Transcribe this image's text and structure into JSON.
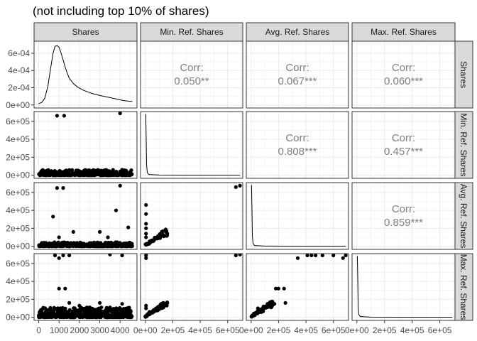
{
  "chart_data": {
    "type": "scatter-matrix",
    "title": "(not including top 10% of shares)",
    "variables": [
      "Shares",
      "Min. Ref. Shares",
      "Avg. Ref. Shares",
      "Max. Ref. Shares"
    ],
    "x_ticks": [
      {
        "values": [
          0,
          1000,
          2000,
          3000,
          4000
        ],
        "labels": [
          "0",
          "1000",
          "2000",
          "3000",
          "4000"
        ]
      },
      {
        "values": [
          0,
          200000,
          400000,
          600000
        ],
        "labels": [
          "0e+00",
          "2e+05",
          "4e+05",
          "6e+05"
        ]
      },
      {
        "values": [
          0,
          200000,
          400000,
          600000
        ],
        "labels": [
          "0e+00",
          "2e+05",
          "4e+05",
          "6e+05"
        ]
      },
      {
        "values": [
          0,
          200000,
          400000,
          600000
        ],
        "labels": [
          "0e+00",
          "2e+05",
          "4e+05",
          "6e+05"
        ]
      }
    ],
    "x_ranges": [
      [
        -230,
        4830
      ],
      [
        -35000,
        710000
      ],
      [
        -35000,
        710000
      ],
      [
        -35000,
        710000
      ]
    ],
    "y_ticks": [
      {
        "values": [
          0,
          0.0002,
          0.0004,
          0.0006
        ],
        "labels": [
          "0e+00",
          "2e-04",
          "4e-04",
          "6e-04"
        ]
      },
      {
        "values": [
          0,
          200000,
          400000,
          600000
        ],
        "labels": [
          "0e+00",
          "2e+05",
          "4e+05",
          "6e+05"
        ]
      },
      {
        "values": [
          0,
          200000,
          400000,
          600000
        ],
        "labels": [
          "0e+00",
          "2e+05",
          "4e+05",
          "6e+05"
        ]
      },
      {
        "values": [
          0,
          200000,
          400000,
          600000
        ],
        "labels": [
          "0e+00",
          "2e+05",
          "4e+05",
          "6e+05"
        ]
      }
    ],
    "y_ranges": [
      [
        -3.5e-05,
        0.00074
      ],
      [
        -35000,
        710000
      ],
      [
        -35000,
        710000
      ],
      [
        -35000,
        710000
      ]
    ],
    "correlations": [
      {
        "row": 0,
        "col": 1,
        "label": "Corr:",
        "value": "0.050**"
      },
      {
        "row": 0,
        "col": 2,
        "label": "Corr:",
        "value": "0.067***"
      },
      {
        "row": 0,
        "col": 3,
        "label": "Corr:",
        "value": "0.060***"
      },
      {
        "row": 1,
        "col": 2,
        "label": "Corr:",
        "value": "0.808***"
      },
      {
        "row": 1,
        "col": 3,
        "label": "Corr:",
        "value": "0.457***"
      },
      {
        "row": 2,
        "col": 3,
        "label": "Corr:",
        "value": "0.859***"
      }
    ],
    "density_shares": [
      [
        0,
        1.5e-05
      ],
      [
        150,
        3e-05
      ],
      [
        300,
        8e-05
      ],
      [
        450,
        0.00022
      ],
      [
        600,
        0.00045
      ],
      [
        700,
        0.0006
      ],
      [
        800,
        0.00068
      ],
      [
        900,
        0.00069
      ],
      [
        1000,
        0.00067
      ],
      [
        1100,
        0.0006
      ],
      [
        1200,
        0.00052
      ],
      [
        1300,
        0.00044
      ],
      [
        1400,
        0.00037
      ],
      [
        1500,
        0.00031
      ],
      [
        1700,
        0.00025
      ],
      [
        1900,
        0.00021
      ],
      [
        2200,
        0.00017
      ],
      [
        2600,
        0.000135
      ],
      [
        3000,
        0.00011
      ],
      [
        3400,
        9e-05
      ],
      [
        3800,
        7e-05
      ],
      [
        4200,
        5e-05
      ],
      [
        4600,
        4e-05
      ]
    ],
    "density_refs": [
      [
        0,
        0.000685
      ],
      [
        3000,
        0.000685
      ],
      [
        6000,
        0.00045
      ],
      [
        9000,
        0.00012
      ],
      [
        14000,
        3e-05
      ],
      [
        25000,
        8e-06
      ],
      [
        100000,
        2e-06
      ],
      [
        300000,
        1e-06
      ],
      [
        690000,
        1e-06
      ]
    ],
    "scatter_outliers": {
      "1_0": [
        [
          900,
          663000
        ],
        [
          1250,
          663000
        ],
        [
          4000,
          690000
        ]
      ],
      "2_0": [
        [
          900,
          650000
        ],
        [
          1200,
          650000
        ],
        [
          4000,
          675000
        ],
        [
          700,
          330000
        ],
        [
          1000,
          100000
        ],
        [
          1700,
          160000
        ],
        [
          3800,
          400000
        ],
        [
          3000,
          160000
        ],
        [
          3400,
          100000
        ],
        [
          4400,
          210000
        ]
      ],
      "3_0": [
        [
          800,
          690000
        ],
        [
          1000,
          660000
        ],
        [
          1200,
          690000
        ],
        [
          1500,
          690000
        ],
        [
          3500,
          700000
        ],
        [
          4100,
          690000
        ],
        [
          1000,
          320000
        ],
        [
          1300,
          320000
        ],
        [
          1500,
          160000
        ],
        [
          2000,
          130000
        ],
        [
          2500,
          110000
        ],
        [
          3000,
          160000
        ],
        [
          3500,
          110000
        ],
        [
          4100,
          150000
        ],
        [
          4500,
          60000
        ]
      ],
      "2_1": [
        [
          660000,
          660000
        ],
        [
          690000,
          675000
        ],
        [
          5000,
          460000
        ],
        [
          5000,
          360000
        ],
        [
          5000,
          250000
        ],
        [
          5000,
          200000
        ],
        [
          5000,
          140000
        ],
        [
          5000,
          100000
        ],
        [
          30000,
          40000
        ],
        [
          60000,
          70000
        ],
        [
          90000,
          100000
        ],
        [
          120000,
          130000
        ],
        [
          150000,
          160000
        ]
      ],
      "3_1": [
        [
          5000,
          690000
        ],
        [
          5000,
          660000
        ],
        [
          660000,
          690000
        ],
        [
          690000,
          700000
        ],
        [
          5000,
          130000
        ],
        [
          5000,
          100000
        ],
        [
          30000,
          60000
        ],
        [
          60000,
          80000
        ],
        [
          100000,
          110000
        ],
        [
          140000,
          140000
        ],
        [
          160000,
          160000
        ]
      ],
      "3_2": [
        [
          340000,
          660000
        ],
        [
          410000,
          690000
        ],
        [
          440000,
          690000
        ],
        [
          470000,
          690000
        ],
        [
          520000,
          690000
        ],
        [
          600000,
          690000
        ],
        [
          670000,
          660000
        ],
        [
          690000,
          690000
        ],
        [
          180000,
          320000
        ],
        [
          200000,
          320000
        ],
        [
          240000,
          320000
        ],
        [
          250000,
          160000
        ],
        [
          50000,
          100000
        ],
        [
          90000,
          120000
        ],
        [
          130000,
          140000
        ],
        [
          170000,
          150000
        ],
        [
          160000,
          140000
        ]
      ]
    }
  }
}
